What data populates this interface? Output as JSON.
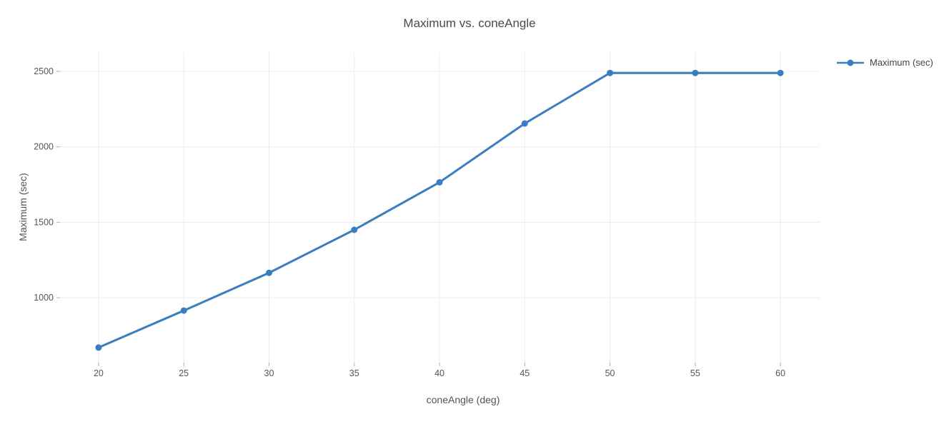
{
  "chart_data": {
    "type": "line",
    "title": "Maximum vs. coneAngle",
    "xlabel": "coneAngle (deg)",
    "ylabel": "Maximum (sec)",
    "x": [
      20,
      25,
      30,
      35,
      40,
      45,
      50,
      55,
      60
    ],
    "series": [
      {
        "name": "Maximum (sec)",
        "values": [
          670,
          915,
          1165,
          1450,
          1765,
          2155,
          2490,
          2490,
          2490
        ],
        "color": "#3a7ebf"
      }
    ],
    "x_ticks": [
      20,
      25,
      30,
      35,
      40,
      45,
      50,
      55,
      60
    ],
    "y_ticks": [
      1000,
      1500,
      2000,
      2500
    ],
    "x_range": [
      17.74,
      62.3
    ],
    "y_range": [
      570,
      2628
    ],
    "grid": true,
    "legend_position": "right-top",
    "marker": "circle",
    "colors": {
      "line": "#3a7ebf",
      "grid": "#ececec",
      "tick": "#b0b0b0",
      "tick_text": "#555555",
      "title_text": "#4a4a4a",
      "background": "#ffffff"
    }
  }
}
